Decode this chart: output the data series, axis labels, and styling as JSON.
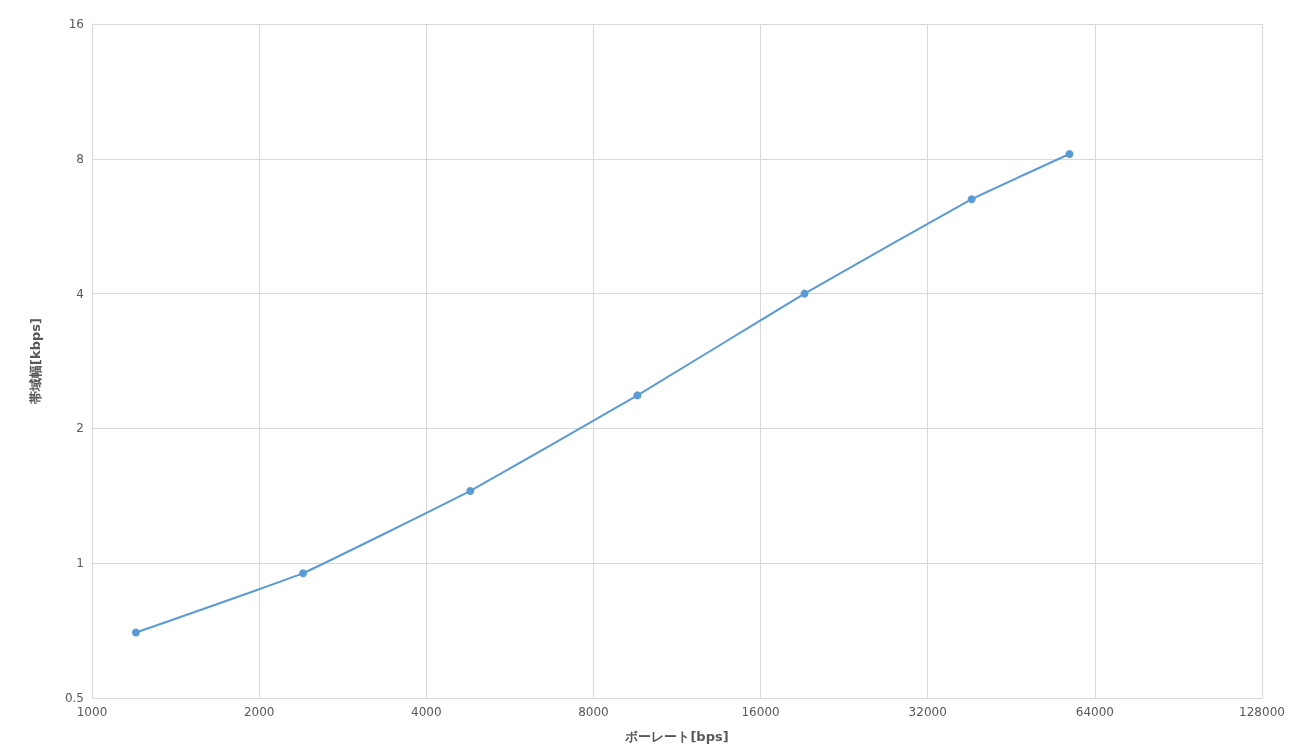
{
  "chart_data": {
    "type": "line",
    "xlabel": "ボーレート[bps]",
    "ylabel": "帯域幅[kbps]",
    "x": [
      1200,
      2400,
      4800,
      9600,
      19200,
      38400,
      57600
    ],
    "series": [
      {
        "color": "#5b9bd5",
        "values": [
          0.7,
          0.95,
          1.45,
          2.37,
          4.0,
          6.5,
          8.2
        ]
      }
    ],
    "log": "xy",
    "xlim": [
      1000,
      128000
    ],
    "xticks": [
      1000,
      2000,
      4000,
      8000,
      16000,
      32000,
      64000,
      128000
    ],
    "ylim": [
      0.5,
      16
    ],
    "yticks": [
      0.5,
      1,
      2,
      4,
      8,
      16
    ],
    "grid": true,
    "marker": "circle",
    "line_style": "solid"
  }
}
